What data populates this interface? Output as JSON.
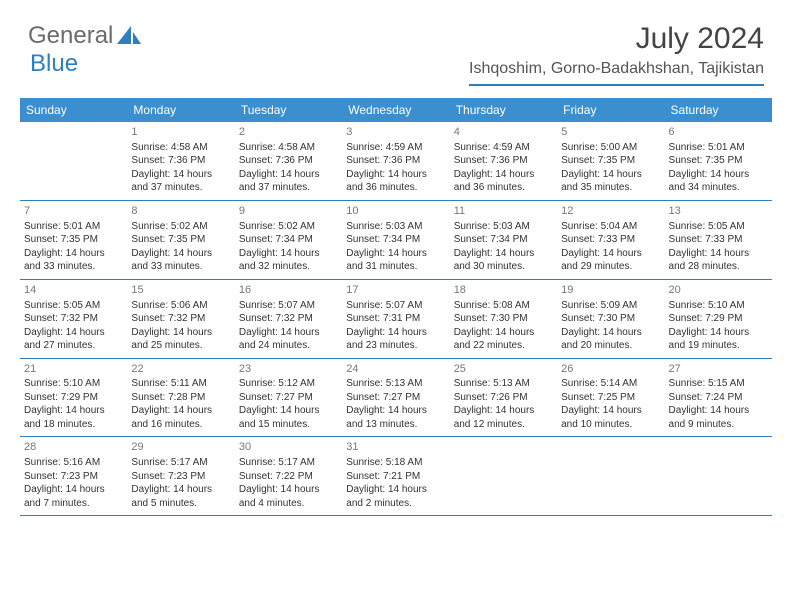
{
  "logo": {
    "text1": "General",
    "text2": "Blue"
  },
  "title": "July 2024",
  "location": "Ishqoshim, Gorno-Badakhshan, Tajikistan",
  "colors": {
    "accent": "#2d7fbf",
    "header_bg": "#3b8fce",
    "header_fg": "#ffffff",
    "text": "#333333",
    "muted": "#777777",
    "background": "#ffffff"
  },
  "weekdays": [
    "Sunday",
    "Monday",
    "Tuesday",
    "Wednesday",
    "Thursday",
    "Friday",
    "Saturday"
  ],
  "fonts": {
    "title_size": 30,
    "location_size": 16,
    "weekday_size": 12,
    "cell_size": 10
  },
  "weeks": [
    [
      null,
      {
        "n": "1",
        "sr": "Sunrise: 4:58 AM",
        "ss": "Sunset: 7:36 PM",
        "d1": "Daylight: 14 hours",
        "d2": "and 37 minutes."
      },
      {
        "n": "2",
        "sr": "Sunrise: 4:58 AM",
        "ss": "Sunset: 7:36 PM",
        "d1": "Daylight: 14 hours",
        "d2": "and 37 minutes."
      },
      {
        "n": "3",
        "sr": "Sunrise: 4:59 AM",
        "ss": "Sunset: 7:36 PM",
        "d1": "Daylight: 14 hours",
        "d2": "and 36 minutes."
      },
      {
        "n": "4",
        "sr": "Sunrise: 4:59 AM",
        "ss": "Sunset: 7:36 PM",
        "d1": "Daylight: 14 hours",
        "d2": "and 36 minutes."
      },
      {
        "n": "5",
        "sr": "Sunrise: 5:00 AM",
        "ss": "Sunset: 7:35 PM",
        "d1": "Daylight: 14 hours",
        "d2": "and 35 minutes."
      },
      {
        "n": "6",
        "sr": "Sunrise: 5:01 AM",
        "ss": "Sunset: 7:35 PM",
        "d1": "Daylight: 14 hours",
        "d2": "and 34 minutes."
      }
    ],
    [
      {
        "n": "7",
        "sr": "Sunrise: 5:01 AM",
        "ss": "Sunset: 7:35 PM",
        "d1": "Daylight: 14 hours",
        "d2": "and 33 minutes."
      },
      {
        "n": "8",
        "sr": "Sunrise: 5:02 AM",
        "ss": "Sunset: 7:35 PM",
        "d1": "Daylight: 14 hours",
        "d2": "and 33 minutes."
      },
      {
        "n": "9",
        "sr": "Sunrise: 5:02 AM",
        "ss": "Sunset: 7:34 PM",
        "d1": "Daylight: 14 hours",
        "d2": "and 32 minutes."
      },
      {
        "n": "10",
        "sr": "Sunrise: 5:03 AM",
        "ss": "Sunset: 7:34 PM",
        "d1": "Daylight: 14 hours",
        "d2": "and 31 minutes."
      },
      {
        "n": "11",
        "sr": "Sunrise: 5:03 AM",
        "ss": "Sunset: 7:34 PM",
        "d1": "Daylight: 14 hours",
        "d2": "and 30 minutes."
      },
      {
        "n": "12",
        "sr": "Sunrise: 5:04 AM",
        "ss": "Sunset: 7:33 PM",
        "d1": "Daylight: 14 hours",
        "d2": "and 29 minutes."
      },
      {
        "n": "13",
        "sr": "Sunrise: 5:05 AM",
        "ss": "Sunset: 7:33 PM",
        "d1": "Daylight: 14 hours",
        "d2": "and 28 minutes."
      }
    ],
    [
      {
        "n": "14",
        "sr": "Sunrise: 5:05 AM",
        "ss": "Sunset: 7:32 PM",
        "d1": "Daylight: 14 hours",
        "d2": "and 27 minutes."
      },
      {
        "n": "15",
        "sr": "Sunrise: 5:06 AM",
        "ss": "Sunset: 7:32 PM",
        "d1": "Daylight: 14 hours",
        "d2": "and 25 minutes."
      },
      {
        "n": "16",
        "sr": "Sunrise: 5:07 AM",
        "ss": "Sunset: 7:32 PM",
        "d1": "Daylight: 14 hours",
        "d2": "and 24 minutes."
      },
      {
        "n": "17",
        "sr": "Sunrise: 5:07 AM",
        "ss": "Sunset: 7:31 PM",
        "d1": "Daylight: 14 hours",
        "d2": "and 23 minutes."
      },
      {
        "n": "18",
        "sr": "Sunrise: 5:08 AM",
        "ss": "Sunset: 7:30 PM",
        "d1": "Daylight: 14 hours",
        "d2": "and 22 minutes."
      },
      {
        "n": "19",
        "sr": "Sunrise: 5:09 AM",
        "ss": "Sunset: 7:30 PM",
        "d1": "Daylight: 14 hours",
        "d2": "and 20 minutes."
      },
      {
        "n": "20",
        "sr": "Sunrise: 5:10 AM",
        "ss": "Sunset: 7:29 PM",
        "d1": "Daylight: 14 hours",
        "d2": "and 19 minutes."
      }
    ],
    [
      {
        "n": "21",
        "sr": "Sunrise: 5:10 AM",
        "ss": "Sunset: 7:29 PM",
        "d1": "Daylight: 14 hours",
        "d2": "and 18 minutes."
      },
      {
        "n": "22",
        "sr": "Sunrise: 5:11 AM",
        "ss": "Sunset: 7:28 PM",
        "d1": "Daylight: 14 hours",
        "d2": "and 16 minutes."
      },
      {
        "n": "23",
        "sr": "Sunrise: 5:12 AM",
        "ss": "Sunset: 7:27 PM",
        "d1": "Daylight: 14 hours",
        "d2": "and 15 minutes."
      },
      {
        "n": "24",
        "sr": "Sunrise: 5:13 AM",
        "ss": "Sunset: 7:27 PM",
        "d1": "Daylight: 14 hours",
        "d2": "and 13 minutes."
      },
      {
        "n": "25",
        "sr": "Sunrise: 5:13 AM",
        "ss": "Sunset: 7:26 PM",
        "d1": "Daylight: 14 hours",
        "d2": "and 12 minutes."
      },
      {
        "n": "26",
        "sr": "Sunrise: 5:14 AM",
        "ss": "Sunset: 7:25 PM",
        "d1": "Daylight: 14 hours",
        "d2": "and 10 minutes."
      },
      {
        "n": "27",
        "sr": "Sunrise: 5:15 AM",
        "ss": "Sunset: 7:24 PM",
        "d1": "Daylight: 14 hours",
        "d2": "and 9 minutes."
      }
    ],
    [
      {
        "n": "28",
        "sr": "Sunrise: 5:16 AM",
        "ss": "Sunset: 7:23 PM",
        "d1": "Daylight: 14 hours",
        "d2": "and 7 minutes."
      },
      {
        "n": "29",
        "sr": "Sunrise: 5:17 AM",
        "ss": "Sunset: 7:23 PM",
        "d1": "Daylight: 14 hours",
        "d2": "and 5 minutes."
      },
      {
        "n": "30",
        "sr": "Sunrise: 5:17 AM",
        "ss": "Sunset: 7:22 PM",
        "d1": "Daylight: 14 hours",
        "d2": "and 4 minutes."
      },
      {
        "n": "31",
        "sr": "Sunrise: 5:18 AM",
        "ss": "Sunset: 7:21 PM",
        "d1": "Daylight: 14 hours",
        "d2": "and 2 minutes."
      },
      null,
      null,
      null
    ]
  ]
}
